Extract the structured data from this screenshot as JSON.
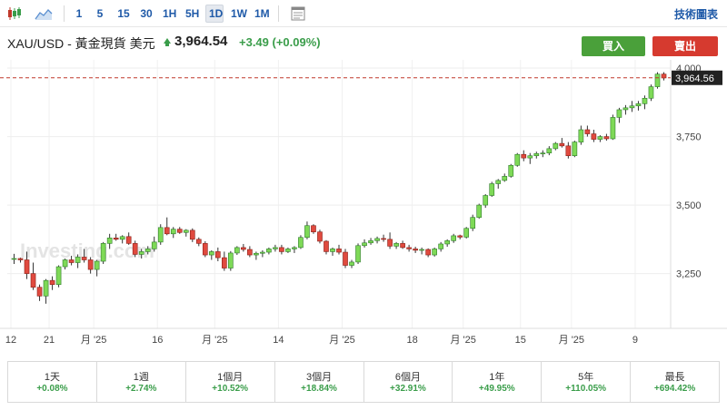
{
  "toolbar": {
    "icons": [
      "candlestick-icon",
      "area-chart-icon",
      "template-icon"
    ],
    "timeframes": [
      "1",
      "5",
      "15",
      "30",
      "1H",
      "5H",
      "1D",
      "1W",
      "1M"
    ],
    "active_timeframe": "1D",
    "technical_link": "技術圖表"
  },
  "header": {
    "symbol": "XAU/USD - 黃金現貨 美元",
    "price": "3,964.54",
    "change": "+3.49 (+0.09%)",
    "buy_label": "買入",
    "sell_label": "賣出"
  },
  "chart_data": {
    "type": "candlestick",
    "watermark": "Investing.com",
    "y_ticks": [
      "4,000",
      "3,750",
      "3,500",
      "3,250"
    ],
    "y_range": [
      3050,
      4030
    ],
    "current_price_label": "3,964.56",
    "current_price": 3964.56,
    "x_tick_labels": [
      "12",
      "21",
      "月 '25",
      "16",
      "月 '25",
      "14",
      "月 '25",
      "18",
      "月 '25",
      "15",
      "月 '25",
      "9"
    ],
    "candles": [
      [
        3302,
        3322,
        3285,
        3305
      ],
      [
        3305,
        3308,
        3290,
        3300
      ],
      [
        3300,
        3330,
        3230,
        3250
      ],
      [
        3250,
        3290,
        3190,
        3200
      ],
      [
        3200,
        3210,
        3150,
        3168
      ],
      [
        3168,
        3230,
        3140,
        3225
      ],
      [
        3225,
        3240,
        3190,
        3210
      ],
      [
        3210,
        3280,
        3200,
        3275
      ],
      [
        3275,
        3305,
        3265,
        3300
      ],
      [
        3300,
        3315,
        3280,
        3290
      ],
      [
        3290,
        3320,
        3270,
        3310
      ],
      [
        3310,
        3340,
        3290,
        3300
      ],
      [
        3300,
        3310,
        3250,
        3265
      ],
      [
        3265,
        3300,
        3240,
        3295
      ],
      [
        3295,
        3365,
        3285,
        3360
      ],
      [
        3360,
        3395,
        3340,
        3380
      ],
      [
        3380,
        3395,
        3370,
        3375
      ],
      [
        3375,
        3390,
        3360,
        3385
      ],
      [
        3385,
        3400,
        3355,
        3360
      ],
      [
        3360,
        3370,
        3310,
        3320
      ],
      [
        3320,
        3340,
        3305,
        3330
      ],
      [
        3330,
        3350,
        3320,
        3340
      ],
      [
        3340,
        3385,
        3330,
        3365
      ],
      [
        3365,
        3430,
        3355,
        3418
      ],
      [
        3418,
        3455,
        3390,
        3395
      ],
      [
        3395,
        3420,
        3380,
        3412
      ],
      [
        3412,
        3420,
        3395,
        3400
      ],
      [
        3400,
        3412,
        3385,
        3408
      ],
      [
        3408,
        3415,
        3365,
        3375
      ],
      [
        3375,
        3382,
        3350,
        3360
      ],
      [
        3360,
        3368,
        3310,
        3318
      ],
      [
        3318,
        3335,
        3300,
        3330
      ],
      [
        3330,
        3345,
        3295,
        3308
      ],
      [
        3308,
        3330,
        3260,
        3270
      ],
      [
        3270,
        3332,
        3260,
        3325
      ],
      [
        3325,
        3350,
        3318,
        3345
      ],
      [
        3345,
        3358,
        3330,
        3338
      ],
      [
        3338,
        3350,
        3310,
        3318
      ],
      [
        3318,
        3330,
        3300,
        3324
      ],
      [
        3324,
        3335,
        3310,
        3328
      ],
      [
        3328,
        3345,
        3320,
        3340
      ],
      [
        3340,
        3355,
        3330,
        3345
      ],
      [
        3345,
        3355,
        3320,
        3330
      ],
      [
        3330,
        3345,
        3325,
        3340
      ],
      [
        3340,
        3350,
        3325,
        3345
      ],
      [
        3345,
        3390,
        3340,
        3382
      ],
      [
        3382,
        3440,
        3375,
        3425
      ],
      [
        3425,
        3430,
        3395,
        3402
      ],
      [
        3402,
        3410,
        3360,
        3368
      ],
      [
        3368,
        3372,
        3320,
        3330
      ],
      [
        3330,
        3345,
        3315,
        3340
      ],
      [
        3340,
        3355,
        3320,
        3328
      ],
      [
        3328,
        3340,
        3270,
        3280
      ],
      [
        3280,
        3300,
        3270,
        3292
      ],
      [
        3292,
        3360,
        3285,
        3352
      ],
      [
        3352,
        3375,
        3345,
        3362
      ],
      [
        3362,
        3380,
        3355,
        3370
      ],
      [
        3370,
        3385,
        3360,
        3378
      ],
      [
        3378,
        3392,
        3366,
        3375
      ],
      [
        3375,
        3400,
        3340,
        3350
      ],
      [
        3350,
        3365,
        3340,
        3360
      ],
      [
        3360,
        3370,
        3340,
        3345
      ],
      [
        3345,
        3355,
        3330,
        3340
      ],
      [
        3340,
        3348,
        3325,
        3335
      ],
      [
        3335,
        3345,
        3320,
        3338
      ],
      [
        3338,
        3342,
        3310,
        3318
      ],
      [
        3318,
        3345,
        3312,
        3340
      ],
      [
        3340,
        3365,
        3330,
        3358
      ],
      [
        3358,
        3375,
        3348,
        3370
      ],
      [
        3370,
        3395,
        3362,
        3388
      ],
      [
        3388,
        3392,
        3375,
        3383
      ],
      [
        3383,
        3420,
        3378,
        3415
      ],
      [
        3415,
        3465,
        3405,
        3455
      ],
      [
        3455,
        3505,
        3450,
        3500
      ],
      [
        3500,
        3540,
        3490,
        3535
      ],
      [
        3535,
        3585,
        3530,
        3578
      ],
      [
        3578,
        3595,
        3560,
        3590
      ],
      [
        3590,
        3615,
        3585,
        3605
      ],
      [
        3605,
        3650,
        3600,
        3645
      ],
      [
        3645,
        3690,
        3640,
        3685
      ],
      [
        3685,
        3700,
        3660,
        3672
      ],
      [
        3672,
        3690,
        3650,
        3680
      ],
      [
        3680,
        3695,
        3670,
        3688
      ],
      [
        3688,
        3700,
        3675,
        3690
      ],
      [
        3690,
        3715,
        3682,
        3706
      ],
      [
        3706,
        3730,
        3700,
        3725
      ],
      [
        3725,
        3745,
        3710,
        3716
      ],
      [
        3716,
        3730,
        3670,
        3680
      ],
      [
        3680,
        3735,
        3675,
        3730
      ],
      [
        3730,
        3790,
        3720,
        3775
      ],
      [
        3775,
        3790,
        3750,
        3760
      ],
      [
        3760,
        3775,
        3730,
        3740
      ],
      [
        3740,
        3755,
        3730,
        3750
      ],
      [
        3750,
        3760,
        3735,
        3742
      ],
      [
        3742,
        3830,
        3738,
        3820
      ],
      [
        3820,
        3855,
        3800,
        3848
      ],
      [
        3848,
        3865,
        3830,
        3855
      ],
      [
        3855,
        3880,
        3840,
        3862
      ],
      [
        3862,
        3880,
        3845,
        3870
      ],
      [
        3870,
        3900,
        3850,
        3890
      ],
      [
        3890,
        3940,
        3880,
        3932
      ],
      [
        3932,
        3985,
        3925,
        3978
      ],
      [
        3978,
        3985,
        3955,
        3964
      ]
    ]
  },
  "performance": [
    {
      "label": "1天",
      "value": "+0.08%"
    },
    {
      "label": "1週",
      "value": "+2.74%"
    },
    {
      "label": "1個月",
      "value": "+10.52%"
    },
    {
      "label": "3個月",
      "value": "+18.84%"
    },
    {
      "label": "6個月",
      "value": "+32.91%"
    },
    {
      "label": "1年",
      "value": "+49.95%"
    },
    {
      "label": "5年",
      "value": "+110.05%"
    },
    {
      "label": "最長",
      "value": "+694.42%"
    }
  ]
}
